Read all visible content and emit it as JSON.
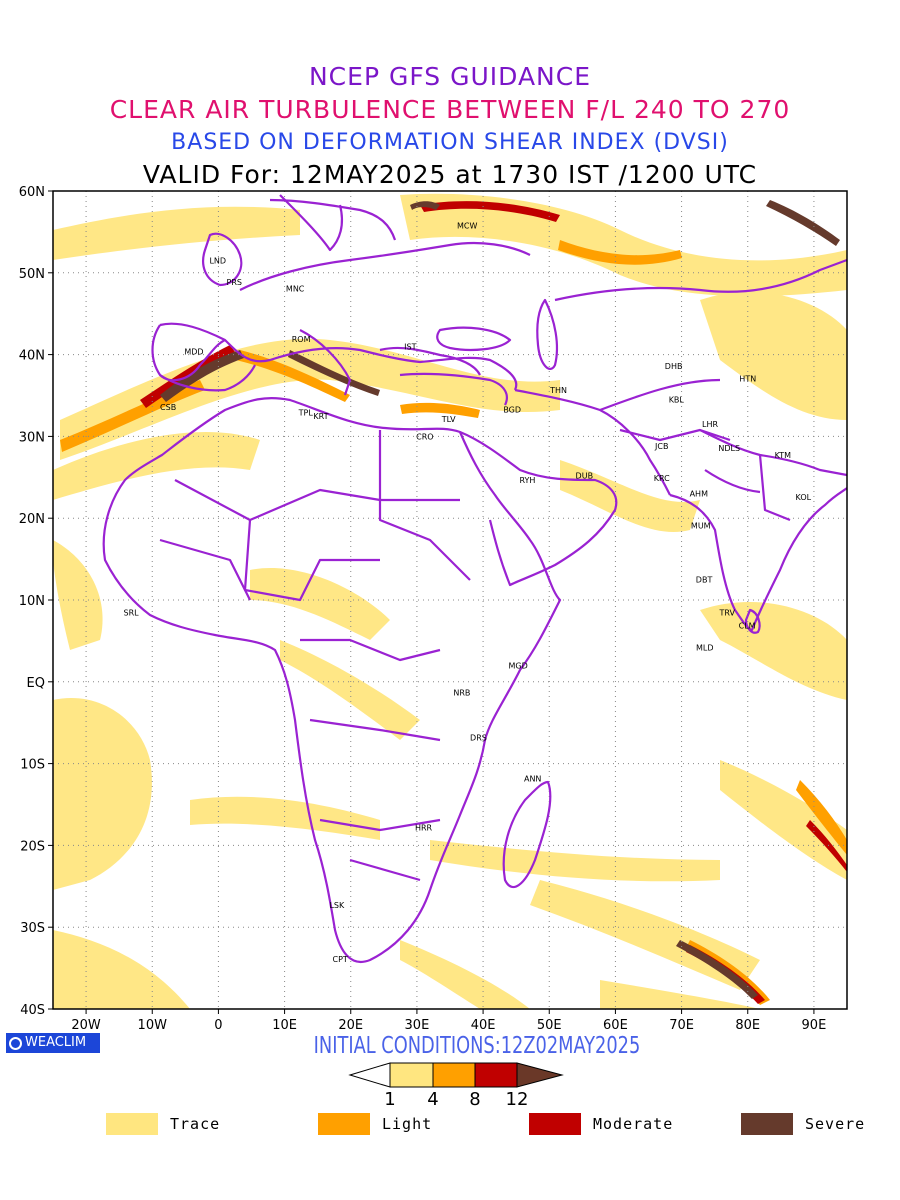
{
  "titles": {
    "line1": "NCEP GFS GUIDANCE",
    "line2": "CLEAR AIR TURBULENCE BETWEEN F/L 240 TO 270",
    "line3": "BASED ON DEFORMATION SHEAR INDEX (DVSI)",
    "line4": "VALID For: 12MAY2025 at 1730 IST /1200 UTC"
  },
  "map": {
    "lat_labels": [
      "60N",
      "50N",
      "40N",
      "30N",
      "20N",
      "10N",
      "EQ",
      "10S",
      "20S",
      "30S",
      "40S"
    ],
    "lon_labels": [
      "20W",
      "10W",
      "0",
      "10E",
      "20E",
      "30E",
      "40E",
      "50E",
      "60E",
      "70E",
      "80E",
      "90E"
    ],
    "lat_range": [
      -40,
      60
    ],
    "lon_range": [
      -25,
      95
    ],
    "cities": [
      {
        "name": "MCW",
        "lon": 37.6,
        "lat": 55.8
      },
      {
        "name": "LND",
        "lon": -0.1,
        "lat": 51.5
      },
      {
        "name": "PRS",
        "lon": 2.4,
        "lat": 48.9
      },
      {
        "name": "MNC",
        "lon": 11.6,
        "lat": 48.1
      },
      {
        "name": "ROM",
        "lon": 12.5,
        "lat": 41.9
      },
      {
        "name": "MDD",
        "lon": -3.7,
        "lat": 40.4
      },
      {
        "name": "IST",
        "lon": 29.0,
        "lat": 41.0
      },
      {
        "name": "CSB",
        "lon": -7.6,
        "lat": 33.6
      },
      {
        "name": "TPL",
        "lon": 13.2,
        "lat": 32.9
      },
      {
        "name": "KRT",
        "lon": 15.5,
        "lat": 32.5
      },
      {
        "name": "CRO",
        "lon": 31.2,
        "lat": 30.0
      },
      {
        "name": "TLV",
        "lon": 34.8,
        "lat": 32.1
      },
      {
        "name": "BGD",
        "lon": 44.4,
        "lat": 33.3
      },
      {
        "name": "THN",
        "lon": 51.4,
        "lat": 35.7
      },
      {
        "name": "RYH",
        "lon": 46.7,
        "lat": 24.7
      },
      {
        "name": "DUB",
        "lon": 55.3,
        "lat": 25.2
      },
      {
        "name": "DHB",
        "lon": 68.8,
        "lat": 38.6
      },
      {
        "name": "KBL",
        "lon": 69.2,
        "lat": 34.5
      },
      {
        "name": "HTN",
        "lon": 80.0,
        "lat": 37.1
      },
      {
        "name": "LHR",
        "lon": 74.3,
        "lat": 31.5
      },
      {
        "name": "JCB",
        "lon": 67.0,
        "lat": 28.8
      },
      {
        "name": "NDLS",
        "lon": 77.2,
        "lat": 28.6
      },
      {
        "name": "KTM",
        "lon": 85.3,
        "lat": 27.7
      },
      {
        "name": "KRC",
        "lon": 67.0,
        "lat": 24.9
      },
      {
        "name": "AHM",
        "lon": 72.6,
        "lat": 23.0
      },
      {
        "name": "KOL",
        "lon": 88.4,
        "lat": 22.6
      },
      {
        "name": "MUM",
        "lon": 72.9,
        "lat": 19.1
      },
      {
        "name": "DBT",
        "lon": 73.4,
        "lat": 12.5
      },
      {
        "name": "TRV",
        "lon": 76.9,
        "lat": 8.5
      },
      {
        "name": "CLM",
        "lon": 79.9,
        "lat": 6.9
      },
      {
        "name": "MLD",
        "lon": 73.5,
        "lat": 4.2
      },
      {
        "name": "SRL",
        "lon": -13.2,
        "lat": 8.5
      },
      {
        "name": "MGD",
        "lon": 45.3,
        "lat": 2.0
      },
      {
        "name": "NRB",
        "lon": 36.8,
        "lat": -1.3
      },
      {
        "name": "DRS",
        "lon": 39.3,
        "lat": -6.8
      },
      {
        "name": "ANN",
        "lon": 47.5,
        "lat": -11.8
      },
      {
        "name": "HRR",
        "lon": 31.0,
        "lat": -17.8
      },
      {
        "name": "LSK",
        "lon": 17.9,
        "lat": -27.3
      },
      {
        "name": "CPT",
        "lon": 18.4,
        "lat": -33.9
      }
    ]
  },
  "branding": {
    "logo_text": "WEACLIM"
  },
  "initial_conditions": "INITIAL CONDITIONS:12Z02MAY2025",
  "colorbar": {
    "ticks": [
      "1",
      "4",
      "8",
      "12"
    ],
    "colors": [
      "#ffe680",
      "#ffa000",
      "#c00000",
      "#6a3828"
    ]
  },
  "legend": [
    {
      "label": "Trace",
      "color": "#ffe680"
    },
    {
      "label": "Light",
      "color": "#ffa000"
    },
    {
      "label": "Moderate",
      "color": "#c00000"
    },
    {
      "label": "Severe",
      "color": "#653a2c"
    }
  ]
}
